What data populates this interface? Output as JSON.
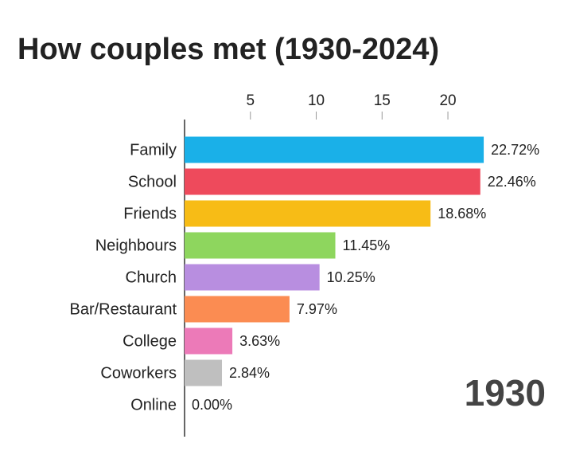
{
  "chart_data": {
    "type": "bar",
    "orientation": "horizontal",
    "title": "How couples met (1930-2024)",
    "year": "1930",
    "categories": [
      "Family",
      "School",
      "Friends",
      "Neighbours",
      "Church",
      "Bar/Restaurant",
      "College",
      "Coworkers",
      "Online"
    ],
    "values": [
      22.72,
      22.46,
      18.68,
      11.45,
      10.25,
      7.97,
      3.63,
      2.84,
      0.0
    ],
    "value_labels": [
      "22.72%",
      "22.46%",
      "18.68%",
      "11.45%",
      "10.25%",
      "7.97%",
      "3.63%",
      "2.84%",
      "0.00%"
    ],
    "colors": [
      "#1ab0e8",
      "#ee4a5c",
      "#f7bc16",
      "#8ed65e",
      "#b88ee0",
      "#fb8c52",
      "#ec7ab8",
      "#bfbfbf",
      "#bfbfbf"
    ],
    "xlim": [
      0,
      23
    ],
    "xticks": [
      5,
      10,
      15,
      20
    ]
  }
}
